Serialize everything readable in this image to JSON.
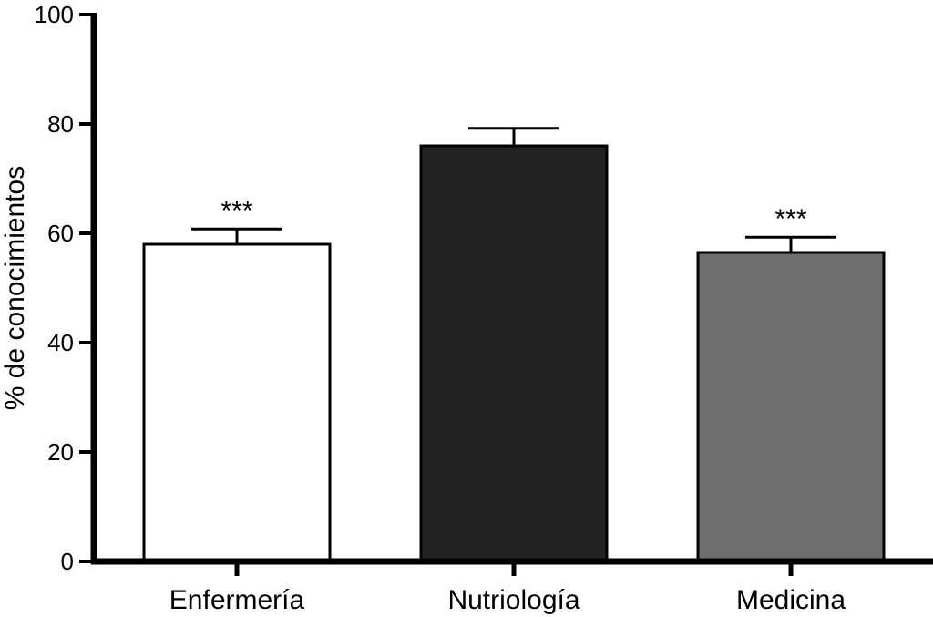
{
  "chart_data": {
    "type": "bar",
    "title": "",
    "xlabel": "",
    "ylabel": "% de conocimientos",
    "ylim": [
      0,
      100
    ],
    "yticks": [
      0,
      20,
      40,
      60,
      80,
      100
    ],
    "grid": false,
    "categories": [
      "Enfermería",
      "Nutriología",
      "Medicina"
    ],
    "values": [
      58,
      76,
      56.5
    ],
    "errors": [
      2.8,
      3.2,
      2.8
    ],
    "colors": [
      "#ffffff",
      "#222222",
      "#6e6e6e"
    ],
    "annotations": [
      "***",
      "",
      "***"
    ]
  }
}
